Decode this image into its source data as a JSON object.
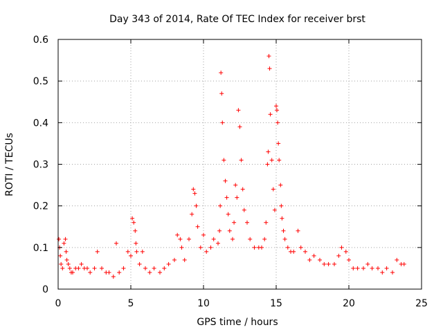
{
  "chart_data": {
    "type": "scatter",
    "title": "Day 343 of 2014, Rate Of TEC Index for receiver brst",
    "xlabel": "GPS time / hours",
    "ylabel": "ROTI / TECUs",
    "xlim": [
      0,
      25
    ],
    "ylim": [
      0,
      0.6
    ],
    "xticks": [
      0,
      5,
      10,
      15,
      20,
      25
    ],
    "yticks": [
      0,
      0.1,
      0.2,
      0.3,
      0.4,
      0.5,
      0.6
    ],
    "xtick_labels": [
      "0",
      "5",
      "10",
      "15",
      "20",
      "25"
    ],
    "ytick_labels": [
      "0",
      "0.1",
      "0.2",
      "0.3",
      "0.4",
      "0.5",
      "0.6"
    ],
    "grid": true,
    "marker": "+",
    "color": "#ff0000",
    "series": [
      {
        "name": "ROTI",
        "x": [
          0.05,
          0.1,
          0.15,
          0.2,
          0.3,
          0.4,
          0.5,
          0.55,
          0.6,
          0.7,
          0.8,
          0.9,
          1.0,
          1.2,
          1.4,
          1.6,
          1.8,
          2.0,
          2.2,
          2.5,
          2.7,
          3.0,
          3.3,
          3.5,
          3.8,
          4.0,
          4.2,
          4.5,
          4.8,
          5.0,
          5.1,
          5.2,
          5.3,
          5.35,
          5.4,
          5.6,
          5.8,
          6.0,
          6.3,
          6.6,
          7.0,
          7.3,
          7.6,
          8.0,
          8.2,
          8.4,
          8.5,
          8.7,
          9.0,
          9.2,
          9.3,
          9.4,
          9.5,
          9.6,
          9.8,
          10.0,
          10.2,
          10.5,
          10.7,
          11.0,
          11.1,
          11.15,
          11.2,
          11.25,
          11.3,
          11.4,
          11.5,
          11.6,
          11.7,
          11.8,
          12.0,
          12.1,
          12.2,
          12.3,
          12.4,
          12.5,
          12.6,
          12.7,
          12.8,
          13.0,
          13.2,
          13.5,
          13.8,
          14.0,
          14.2,
          14.3,
          14.4,
          14.45,
          14.5,
          14.55,
          14.6,
          14.7,
          14.8,
          14.9,
          15.0,
          15.05,
          15.1,
          15.15,
          15.2,
          15.3,
          15.35,
          15.4,
          15.5,
          15.6,
          15.8,
          16.0,
          16.2,
          16.5,
          16.7,
          17.0,
          17.3,
          17.6,
          18.0,
          18.3,
          18.6,
          19.0,
          19.3,
          19.5,
          19.8,
          20.0,
          20.3,
          20.6,
          21.0,
          21.3,
          21.6,
          22.0,
          22.3,
          22.6,
          23.0,
          23.3,
          23.6,
          23.8
        ],
        "y": [
          0.12,
          0.1,
          0.08,
          0.06,
          0.05,
          0.11,
          0.12,
          0.09,
          0.07,
          0.06,
          0.05,
          0.04,
          0.04,
          0.05,
          0.05,
          0.06,
          0.05,
          0.05,
          0.04,
          0.05,
          0.09,
          0.05,
          0.04,
          0.04,
          0.03,
          0.11,
          0.04,
          0.05,
          0.09,
          0.08,
          0.17,
          0.16,
          0.14,
          0.11,
          0.09,
          0.06,
          0.09,
          0.05,
          0.04,
          0.05,
          0.04,
          0.05,
          0.06,
          0.07,
          0.13,
          0.12,
          0.1,
          0.07,
          0.12,
          0.18,
          0.24,
          0.23,
          0.2,
          0.15,
          0.1,
          0.13,
          0.09,
          0.1,
          0.12,
          0.11,
          0.14,
          0.2,
          0.52,
          0.47,
          0.4,
          0.31,
          0.26,
          0.22,
          0.18,
          0.14,
          0.12,
          0.16,
          0.25,
          0.22,
          0.43,
          0.39,
          0.31,
          0.24,
          0.19,
          0.16,
          0.12,
          0.1,
          0.1,
          0.1,
          0.12,
          0.16,
          0.3,
          0.33,
          0.56,
          0.53,
          0.42,
          0.31,
          0.24,
          0.19,
          0.44,
          0.43,
          0.4,
          0.35,
          0.31,
          0.25,
          0.2,
          0.17,
          0.14,
          0.12,
          0.1,
          0.09,
          0.09,
          0.14,
          0.1,
          0.09,
          0.07,
          0.08,
          0.07,
          0.06,
          0.06,
          0.06,
          0.08,
          0.1,
          0.09,
          0.07,
          0.05,
          0.05,
          0.05,
          0.06,
          0.05,
          0.05,
          0.04,
          0.05,
          0.04,
          0.07,
          0.06,
          0.06
        ]
      }
    ]
  }
}
